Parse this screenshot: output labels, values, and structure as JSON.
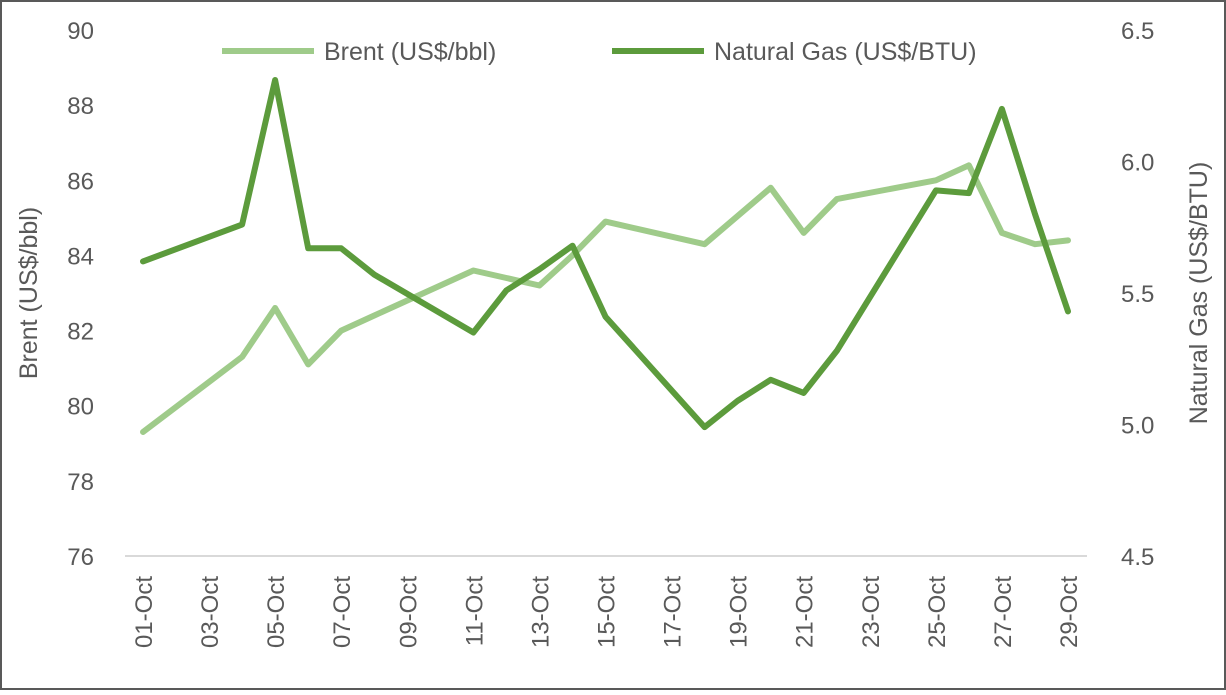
{
  "chart_data": {
    "type": "line",
    "xlabel": "",
    "x_tick_labels": [
      "01-Oct",
      "03-Oct",
      "05-Oct",
      "07-Oct",
      "09-Oct",
      "11-Oct",
      "13-Oct",
      "15-Oct",
      "17-Oct",
      "19-Oct",
      "21-Oct",
      "23-Oct",
      "25-Oct",
      "27-Oct",
      "29-Oct"
    ],
    "y_left": {
      "label": "Brent (US$/bbl)",
      "range": [
        76,
        90
      ],
      "ticks": [
        "76",
        "78",
        "80",
        "82",
        "84",
        "86",
        "88",
        "90"
      ]
    },
    "y_right": {
      "label": "Natural Gas (US$/BTU)",
      "range": [
        4.5,
        6.5
      ],
      "ticks": [
        "4.5",
        "5.0",
        "5.5",
        "6.0",
        "6.5"
      ]
    },
    "legend_position": "top",
    "grid": false,
    "series": [
      {
        "name": "Brent (US$/bbl)",
        "axis": "left",
        "color": "#9fcb8a",
        "points": [
          {
            "x": "01-Oct",
            "y": 79.3
          },
          {
            "x": "04-Oct",
            "y": 81.3
          },
          {
            "x": "05-Oct",
            "y": 82.6
          },
          {
            "x": "06-Oct",
            "y": 81.1
          },
          {
            "x": "07-Oct",
            "y": 82.0
          },
          {
            "x": "08-Oct",
            "y": 82.4
          },
          {
            "x": "11-Oct",
            "y": 83.6
          },
          {
            "x": "12-Oct",
            "y": 83.4
          },
          {
            "x": "13-Oct",
            "y": 83.2
          },
          {
            "x": "14-Oct",
            "y": 84.0
          },
          {
            "x": "15-Oct",
            "y": 84.9
          },
          {
            "x": "18-Oct",
            "y": 84.3
          },
          {
            "x": "20-Oct",
            "y": 85.8
          },
          {
            "x": "21-Oct",
            "y": 84.6
          },
          {
            "x": "22-Oct",
            "y": 85.5
          },
          {
            "x": "25-Oct",
            "y": 86.0
          },
          {
            "x": "26-Oct",
            "y": 86.4
          },
          {
            "x": "27-Oct",
            "y": 84.6
          },
          {
            "x": "28-Oct",
            "y": 84.3
          },
          {
            "x": "29-Oct",
            "y": 84.4
          }
        ]
      },
      {
        "name": "Natural Gas (US$/BTU)",
        "axis": "right",
        "color": "#5c9b3c",
        "points": [
          {
            "x": "01-Oct",
            "y": 5.62
          },
          {
            "x": "04-Oct",
            "y": 5.76
          },
          {
            "x": "05-Oct",
            "y": 6.31
          },
          {
            "x": "06-Oct",
            "y": 5.67
          },
          {
            "x": "07-Oct",
            "y": 5.67
          },
          {
            "x": "08-Oct",
            "y": 5.57
          },
          {
            "x": "11-Oct",
            "y": 5.35
          },
          {
            "x": "12-Oct",
            "y": 5.51
          },
          {
            "x": "13-Oct",
            "y": 5.59
          },
          {
            "x": "14-Oct",
            "y": 5.68
          },
          {
            "x": "15-Oct",
            "y": 5.41
          },
          {
            "x": "18-Oct",
            "y": 4.99
          },
          {
            "x": "19-Oct",
            "y": 5.09
          },
          {
            "x": "20-Oct",
            "y": 5.17
          },
          {
            "x": "21-Oct",
            "y": 5.12
          },
          {
            "x": "22-Oct",
            "y": 5.28
          },
          {
            "x": "25-Oct",
            "y": 5.89
          },
          {
            "x": "26-Oct",
            "y": 5.88
          },
          {
            "x": "27-Oct",
            "y": 6.2
          },
          {
            "x": "28-Oct",
            "y": 5.8
          },
          {
            "x": "29-Oct",
            "y": 5.43
          }
        ]
      }
    ]
  }
}
